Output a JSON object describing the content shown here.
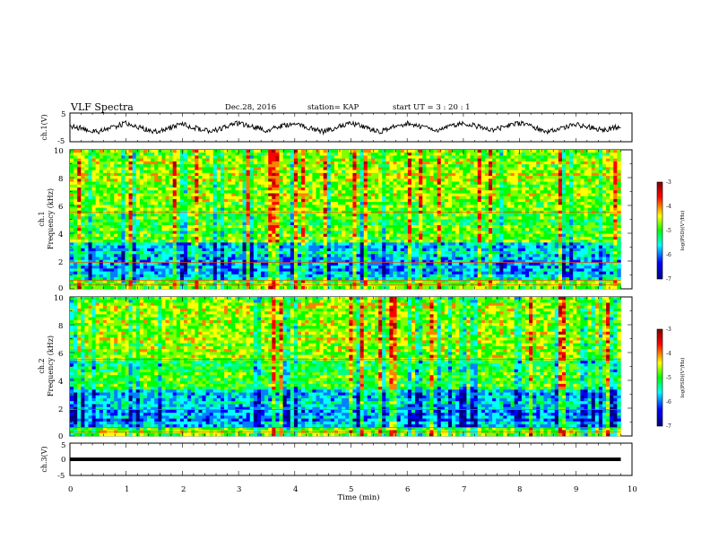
{
  "header": {
    "title": "VLF Spectra",
    "date": "Dec.28, 2016",
    "station": "station= KAP",
    "start_time": "start  UT =  3 : 20 : 1"
  },
  "colors": {
    "spectrum_scale": [
      "#00007f",
      "#0000ff",
      "#00ffff",
      "#00ff00",
      "#ffff00",
      "#ff0000",
      "#800000"
    ],
    "trace": "#000000",
    "frame": "#000000",
    "background": "#ffffff"
  },
  "chart_data": [
    {
      "id": "ch1_waveform",
      "type": "line",
      "ylabel": "ch.1(V)",
      "ylim": [
        -5,
        5
      ],
      "yticks": [
        "5",
        "-5"
      ],
      "xlim": [
        0,
        10
      ],
      "x": [
        0,
        0.5,
        1,
        1.5,
        2,
        2.5,
        3,
        3.5,
        4,
        4.5,
        5,
        5.5,
        6,
        6.5,
        7,
        7.5,
        8,
        8.5,
        9,
        9.5,
        9.8
      ],
      "y": [
        0.5,
        -1.5,
        1.5,
        -1.5,
        1,
        -1.5,
        1.5,
        -1,
        1.5,
        -1.5,
        1.5,
        -1.5,
        1.5,
        -1,
        1.5,
        -1,
        1.5,
        -1.5,
        1,
        -1,
        0.5
      ]
    },
    {
      "id": "ch1_spectrogram",
      "type": "heatmap",
      "ylabel": "Frequency  (kHz)",
      "channel_label": "ch.1",
      "ylim": [
        0,
        10
      ],
      "yticks": [
        "0",
        "2",
        "4",
        "6",
        "8",
        "10"
      ],
      "xlim": [
        0,
        10
      ],
      "data_end_x": 9.8,
      "colorbar": {
        "label": "log(PSD)(V²/Hz)",
        "range": [
          -7,
          -3
        ],
        "ticks": [
          "-3",
          "-4",
          "-5",
          "-6",
          "-7"
        ]
      }
    },
    {
      "id": "ch2_spectrogram",
      "type": "heatmap",
      "ylabel": "Frequency  (kHz)",
      "channel_label": "ch.2",
      "ylim": [
        0,
        10
      ],
      "yticks": [
        "0",
        "2",
        "4",
        "6",
        "8",
        "10"
      ],
      "xlim": [
        0,
        10
      ],
      "data_end_x": 9.8,
      "colorbar": {
        "label": "log(PSD)(V²/Hz)",
        "range": [
          -7,
          -3
        ],
        "ticks": [
          "-3",
          "-4",
          "-5",
          "-6",
          "-7"
        ]
      }
    },
    {
      "id": "ch3_waveform",
      "type": "line",
      "ylabel": "ch.3(V)",
      "ylim": [
        -5,
        5
      ],
      "yticks": [
        "5",
        "0",
        "-5"
      ],
      "xlim": [
        0,
        10
      ],
      "x": [
        0,
        9.8
      ],
      "y": [
        0,
        0
      ]
    }
  ],
  "xaxis": {
    "label": "Time  (min)",
    "ticks": [
      "0",
      "1",
      "2",
      "3",
      "4",
      "5",
      "6",
      "7",
      "8",
      "9",
      "10"
    ]
  }
}
